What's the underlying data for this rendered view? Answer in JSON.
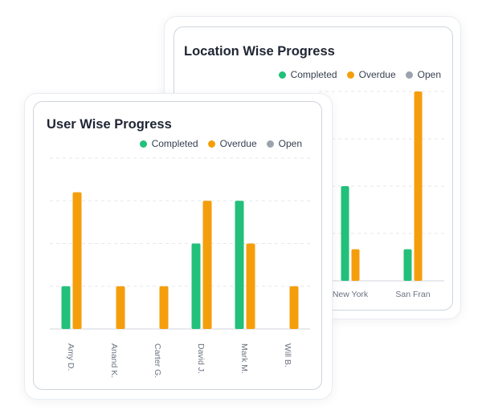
{
  "colors": {
    "completed": "#22c07a",
    "overdue": "#f59e0b",
    "open": "#9ca3af",
    "grid": "#e5e7eb",
    "axis": "#d1d5db"
  },
  "chart_data": [
    {
      "type": "bar",
      "title": "Location Wise Progress",
      "legend": [
        "Completed",
        "Overdue",
        "Open"
      ],
      "legend_position": "top-right",
      "categories": [
        "New York",
        "San Fran"
      ],
      "series": [
        {
          "name": "Completed",
          "values": [
            6,
            2
          ]
        },
        {
          "name": "Overdue",
          "values": [
            2,
            12
          ]
        },
        {
          "name": "Open",
          "values": [
            0,
            0
          ]
        }
      ],
      "ylim": [
        0,
        12
      ],
      "xlabel": "",
      "ylabel": "",
      "grid": true
    },
    {
      "type": "bar",
      "title": "User Wise Progress",
      "legend": [
        "Completed",
        "Overdue",
        "Open"
      ],
      "legend_position": "top-right",
      "categories": [
        "Amy D.",
        "Anand K.",
        "Carter G.",
        "David J.",
        "Mark M.",
        "Will B."
      ],
      "series": [
        {
          "name": "Completed",
          "values": [
            1,
            0,
            0,
            2,
            3,
            0
          ]
        },
        {
          "name": "Overdue",
          "values": [
            3.2,
            1,
            1,
            3,
            2,
            1
          ]
        },
        {
          "name": "Open",
          "values": [
            0,
            0,
            0,
            0,
            0,
            0
          ]
        }
      ],
      "ylim": [
        0,
        4
      ],
      "xlabel": "",
      "ylabel": "",
      "grid": true
    }
  ]
}
